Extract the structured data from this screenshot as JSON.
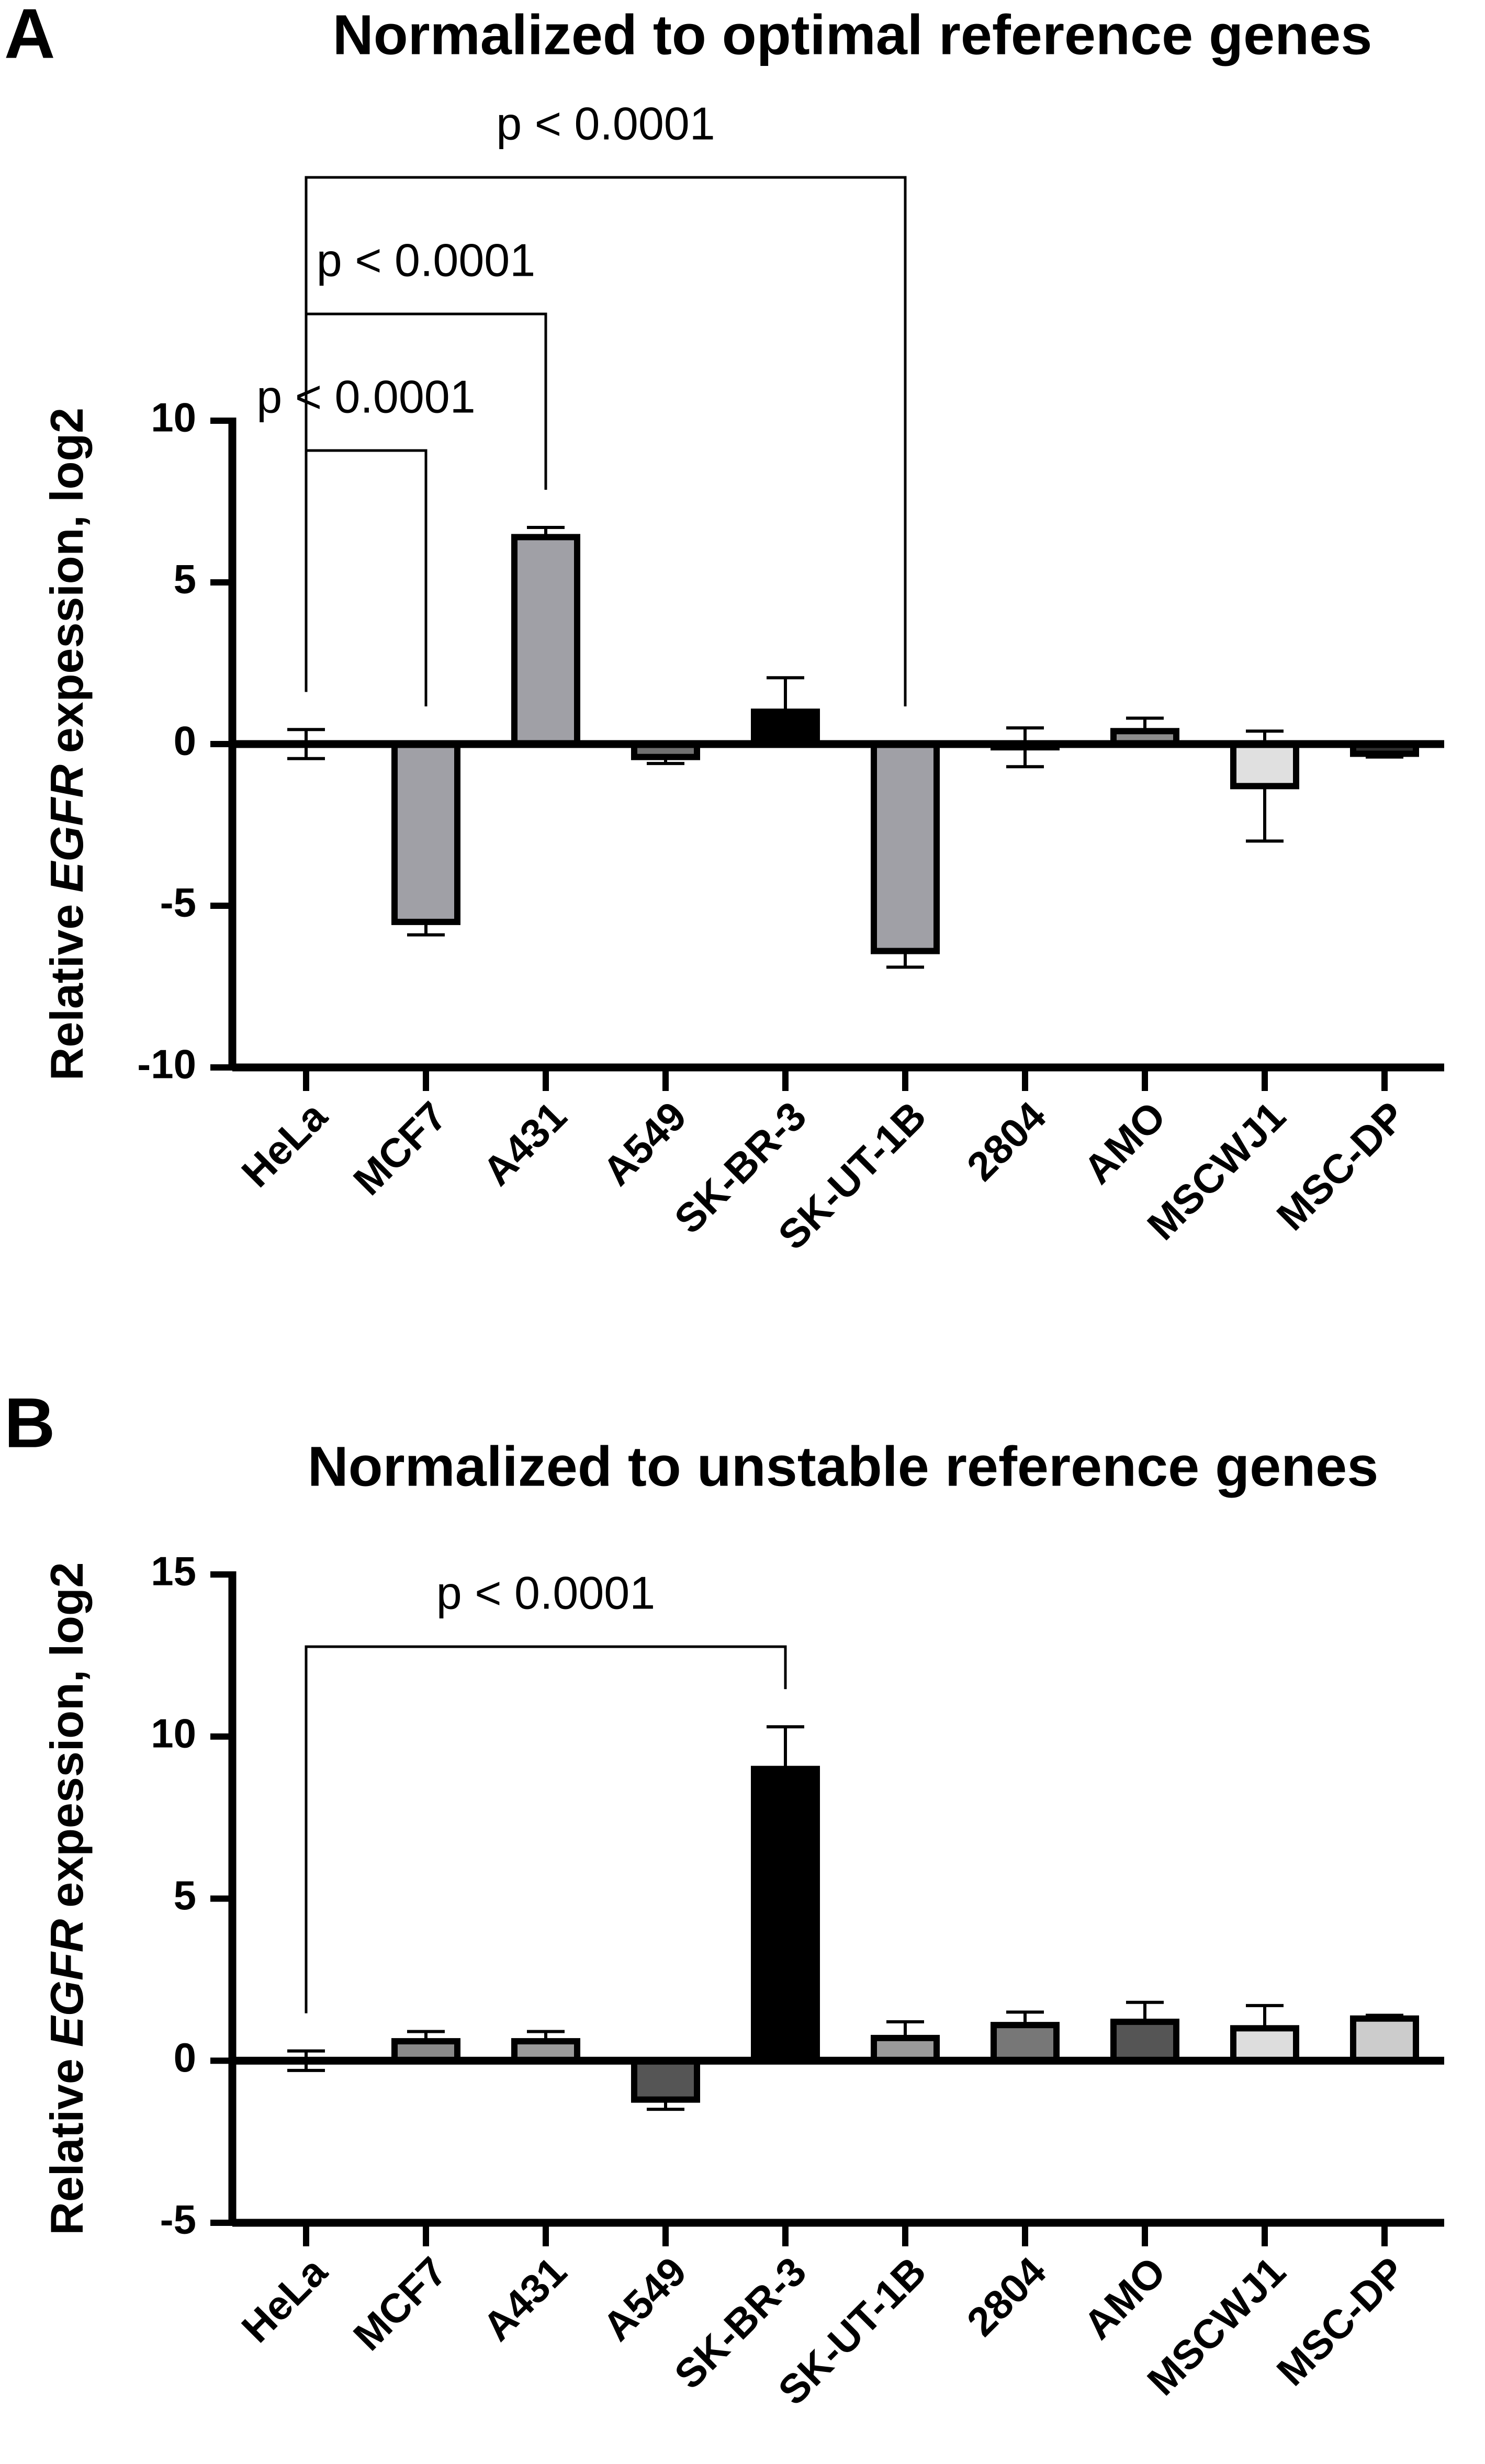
{
  "chart_data": [
    {
      "type": "bar",
      "panel": "A",
      "title": "Normalized to optimal reference genes",
      "ylabel": {
        "pre": "Relative",
        "gene": "EGFR",
        "post": "expession, log2"
      },
      "categories": [
        "HeLa",
        "MCF7",
        "A431",
        "A549",
        "SK-BR-3",
        "SK-UT-1B",
        "2804",
        "AMO",
        "MSCWJ1",
        "MSC-DP"
      ],
      "values": [
        0,
        -5.5,
        6.4,
        -0.4,
        1.0,
        -6.4,
        -0.1,
        0.4,
        -1.3,
        -0.3
      ],
      "errors": [
        0.45,
        0.4,
        0.3,
        0.2,
        1.05,
        0.5,
        0.6,
        0.4,
        1.7,
        0.1
      ],
      "colors": [
        "#ffffff",
        "#a0a0a6",
        "#a0a0a6",
        "#707070",
        "#000000",
        "#a0a0a6",
        "#505050",
        "#8c8c8c",
        "#e0e0e0",
        "#303030"
      ],
      "ylim": [
        -10,
        10
      ],
      "yticks": [
        -10,
        -5,
        0,
        5,
        10
      ],
      "annotations": [
        {
          "text": "p < 0.0001",
          "from": "HeLa",
          "to": "MCF7"
        },
        {
          "text": "p < 0.0001",
          "from": "HeLa",
          "to": "A431"
        },
        {
          "text": "p < 0.0001",
          "from": "HeLa",
          "to": "SK-UT-1B"
        }
      ]
    },
    {
      "type": "bar",
      "panel": "B",
      "title": "Normalized to unstable reference genes",
      "ylabel": {
        "pre": "Relative",
        "gene": "EGFR",
        "post": "expession, log2"
      },
      "categories": [
        "HeLa",
        "MCF7",
        "A431",
        "A549",
        "SK-BR-3",
        "SK-UT-1B",
        "2804",
        "AMO",
        "MSCWJ1",
        "MSC-DP"
      ],
      "values": [
        0,
        0.6,
        0.6,
        -1.2,
        9.0,
        0.7,
        1.1,
        1.2,
        1.0,
        1.3
      ],
      "errors": [
        0.3,
        0.3,
        0.3,
        0.3,
        1.3,
        0.5,
        0.4,
        0.6,
        0.7,
        0.1
      ],
      "colors": [
        "#ffffff",
        "#8a8a8a",
        "#9a9a9a",
        "#555555",
        "#000000",
        "#9a9a9a",
        "#777777",
        "#555555",
        "#dddddd",
        "#cccccc"
      ],
      "ylim": [
        -5,
        15
      ],
      "yticks": [
        -5,
        0,
        5,
        10,
        15
      ],
      "annotations": [
        {
          "text": "p < 0.0001",
          "from": "HeLa",
          "to": "SK-BR-3"
        }
      ]
    }
  ]
}
